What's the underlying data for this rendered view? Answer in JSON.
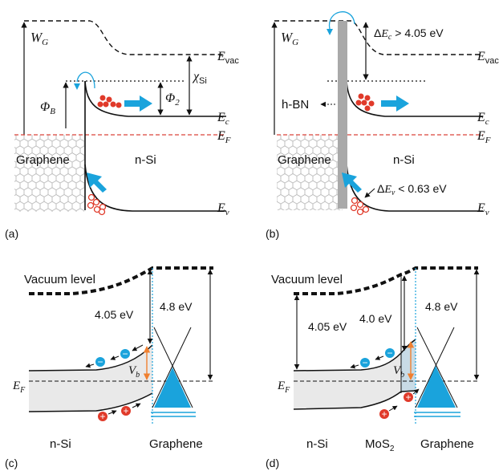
{
  "colors": {
    "cyan": "#1aa3dc",
    "red_fill": "#e03a2a",
    "red_dash": "#d9433a",
    "orange": "#f08030",
    "gray_bar": "#a9a9a9",
    "hex_stroke": "#b0b0b0",
    "shade": "#e9e9e9",
    "mos2": "#c8dbe6"
  },
  "panel_a": {
    "label": "(a)",
    "wg_sym": "W",
    "wg_sub": "G",
    "phib_sym": "Φ",
    "phib_sub": "B",
    "phi2_sym": "Φ",
    "phi2_sub": "2",
    "chi_sym": "χ",
    "chi_sub": "Si",
    "evac_sym": "E",
    "evac_sub": "vac",
    "ec_sym": "E",
    "ec_sub": "c",
    "ef_sym": "E",
    "ef_sub": "F",
    "ev_sym": "E",
    "ev_sub": "v",
    "left_material": "Graphene",
    "right_material": "n-Si"
  },
  "panel_b": {
    "label": "(b)",
    "wg_sym": "W",
    "wg_sub": "G",
    "dec_pre": "Δ",
    "dec_sym": "E",
    "dec_sub": "c",
    "dec_val": " > 4.05 eV",
    "dev_pre": "Δ",
    "dev_sym": "E",
    "dev_sub": "v",
    "dev_val": " < 0.63 eV",
    "barrier": "h-BN",
    "evac_sym": "E",
    "evac_sub": "vac",
    "ec_sym": "E",
    "ec_sub": "c",
    "ef_sym": "E",
    "ef_sub": "F",
    "ev_sym": "E",
    "ev_sub": "v",
    "left_material": "Graphene",
    "right_material": "n-Si"
  },
  "panel_c": {
    "label": "(c)",
    "vacuum": "Vacuum level",
    "e1": "4.05 eV",
    "e2": "4.8 eV",
    "vb_sym": "V",
    "vb_sub": "b",
    "ef_sym": "E",
    "ef_sub": "F",
    "left_material": "n-Si",
    "right_material": "Graphene",
    "minus": "−",
    "plus": "+"
  },
  "panel_d": {
    "label": "(d)",
    "vacuum": "Vacuum level",
    "e1": "4.05 eV",
    "e2": "4.0 eV",
    "e3": "4.8 eV",
    "vb_sym": "V",
    "vb_sub": "b",
    "ef_sym": "E",
    "ef_sub": "F",
    "left_material": "n-Si",
    "mid_sym": "MoS",
    "mid_sub": "2",
    "right_material": "Graphene",
    "minus": "−",
    "plus": "+"
  }
}
